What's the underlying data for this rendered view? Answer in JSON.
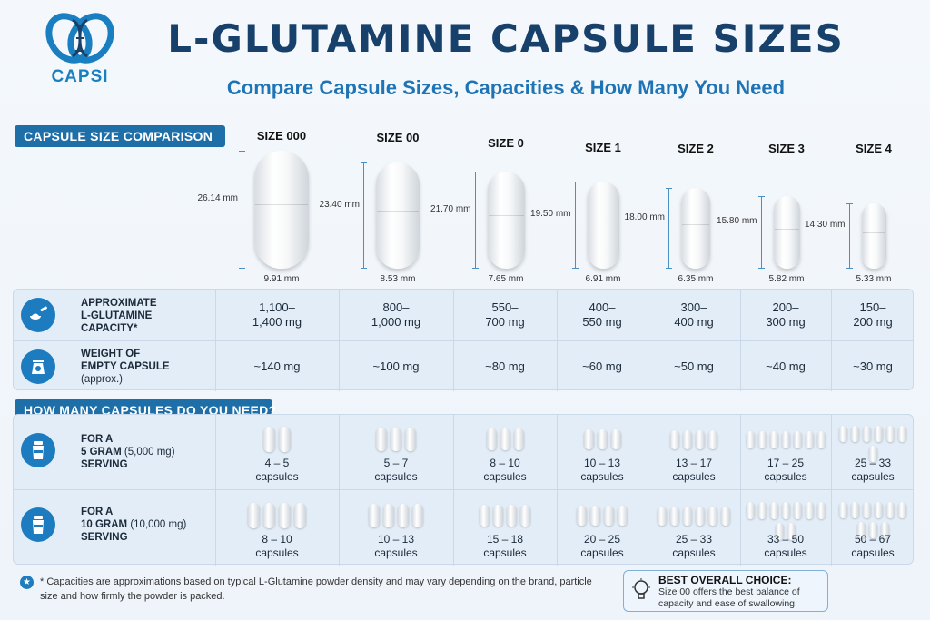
{
  "header": {
    "logo_text_a": "CAP",
    "logo_text_b": "SI",
    "title": "L-GLUTAMINE CAPSULE SIZES",
    "subtitle": "Compare Capsule Sizes, Capacities & How Many You Need"
  },
  "sections": {
    "size_comparison": "CAPSULE SIZE COMPARISON",
    "how_many": "HOW MANY CAPSULES DO YOU NEED?"
  },
  "capsules": [
    {
      "size": "SIZE 000",
      "length": "26.14 mm",
      "diameter": "9.91 mm",
      "capacity": "1,100–\n1,400 mg",
      "weight": "~140 mg",
      "five_g": "4 – 5\ncapsules",
      "ten_g": "8 – 10\ncapsules"
    },
    {
      "size": "SIZE 00",
      "length": "23.40 mm",
      "diameter": "8.53 mm",
      "capacity": "800–\n1,000 mg",
      "weight": "~100 mg",
      "five_g": "5 – 7\ncapsules",
      "ten_g": "10 – 13\ncapsules"
    },
    {
      "size": "SIZE 0",
      "length": "21.70 mm",
      "diameter": "7.65 mm",
      "capacity": "550–\n700 mg",
      "weight": "~80 mg",
      "five_g": "8 – 10\ncapsules",
      "ten_g": "15 – 18\ncapsules"
    },
    {
      "size": "SIZE 1",
      "length": "19.50 mm",
      "diameter": "6.91 mm",
      "capacity": "400–\n550 mg",
      "weight": "~60 mg",
      "five_g": "10 – 13\ncapsules",
      "ten_g": "20 – 25\ncapsules"
    },
    {
      "size": "SIZE 2",
      "length": "18.00 mm",
      "diameter": "6.35 mm",
      "capacity": "300–\n400 mg",
      "weight": "~50 mg",
      "five_g": "13 – 17\ncapsules",
      "ten_g": "25 – 33\ncapsules"
    },
    {
      "size": "SIZE 3",
      "length": "15.80 mm",
      "diameter": "5.82 mm",
      "capacity": "200–\n300 mg",
      "weight": "~40 mg",
      "five_g": "17 – 25\ncapsules",
      "ten_g": "33 – 50\ncapsules"
    },
    {
      "size": "SIZE 4",
      "length": "14.30 mm",
      "diameter": "5.33 mm",
      "capacity": "150–\n200 mg",
      "weight": "~30 mg",
      "five_g": "25 – 33\ncapsules",
      "ten_g": "50 – 67\ncapsules"
    }
  ],
  "rows": {
    "capacity_label": "APPROXIMATE\nL-GLUTAMINE\nCAPACITY*",
    "weight_label": "WEIGHT OF\nEMPTY CAPSULE",
    "weight_sub": "(approx.)",
    "five_label_a": "FOR A",
    "five_label_b": "5 GRAM",
    "five_label_b2": " (5,000 mg)",
    "five_label_c": "SERVING",
    "ten_label_a": "FOR A",
    "ten_label_b": "10 GRAM",
    "ten_label_b2": " (10,000 mg)",
    "ten_label_c": "SERVING"
  },
  "icons": {
    "capacity": "scoop-powder-icon",
    "weight": "scale-icon",
    "five": "shaker-bottle-icon",
    "ten": "shaker-bottle-icon",
    "footnote": "star-icon",
    "best": "lightbulb-icon"
  },
  "footer": {
    "footnote": "* Capacities are approximations based on typical L-Glutamine powder density and may vary depending on the brand, particle size and how firmly the powder is packed.",
    "best_title": "BEST OVERALL CHOICE:",
    "best_text": "Size 00 offers the best balance of capacity and ease of swallowing."
  },
  "colors": {
    "title": "#17406b",
    "accent": "#1e6fa8",
    "subtitle": "#1f74b5"
  }
}
